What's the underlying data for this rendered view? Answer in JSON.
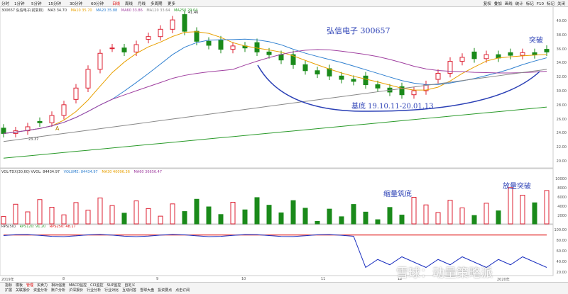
{
  "toolbar": {
    "periods": [
      "分时",
      "1分钟",
      "5分钟",
      "15分钟",
      "30分钟",
      "60分钟",
      "日线",
      "周线",
      "月线",
      "多周期",
      "更多"
    ],
    "active_period": "日线",
    "right_tools": [
      "复权",
      "叠加",
      "画线",
      "统计",
      "标记",
      "F10",
      "标记",
      "关闭"
    ]
  },
  "main_info": {
    "stock": "300657 弘信电子(前复权)",
    "ma3": "MA3 34.70",
    "ma10": "MA10 35.70",
    "ma20": "MA20 35.88",
    "ma60": "MA60 33.86",
    "ma120": "MA120 33.64",
    "ma250": "MA250 29.04"
  },
  "volume_info": {
    "label": "VOL-TDX(30,60) VVOL: 84434.97",
    "volume": "VOLUME: 84434.97",
    "ma30": "MA30 40096.36",
    "ma60": "MA60 36656.47"
  },
  "rps_info": {
    "label": "RPS(50)",
    "rps120": "RPS120: 91.20",
    "rps250": "RPS250: 48.17"
  },
  "annotations": {
    "stock_title": "弘信电子 300657",
    "breakout": "突破",
    "base": "基底 19.10.11-20.01.13",
    "shrink_volume": "缩量筑底",
    "volume_breakout": "放量突破",
    "high_marker": "41.46",
    "low_marker": "23.37",
    "marker_a": "A"
  },
  "axes": {
    "price_levels": [
      "40.00",
      "38.00",
      "36.00",
      "34.00",
      "32.00",
      "30.00",
      "28.00",
      "26.00",
      "24.00",
      "22.00",
      "20.00"
    ],
    "volume_levels": [
      "10000",
      "8000",
      "6000",
      "4000",
      "2000"
    ],
    "rps_levels": [
      "100.00",
      "80.00",
      "60.00",
      "40.00",
      "20.00"
    ],
    "dates": [
      "2019年",
      "8",
      "9",
      "10",
      "11",
      "12",
      "2020年"
    ]
  },
  "bottom_tabs": [
    "指标",
    "模板",
    "管理",
    "买卖力",
    "相对强度",
    "MACD监控",
    "CCI监控",
    "SUP监控",
    "自定义"
  ],
  "bottom_active_tab": "管理",
  "bottom_links": [
    "扩展",
    "关联报价",
    "资金分析",
    "账户分析",
    "沪深报价",
    "行业分析",
    "行业对比",
    "互动问答",
    "雪球大盘",
    "投资要点",
    "点击订阅"
  ],
  "watermark": "雪球：动量策略派",
  "chart_data": {
    "type": "candlestick",
    "price_range": [
      20,
      41
    ],
    "closes": [
      24.2,
      24.6,
      25.2,
      25.8,
      26.9,
      28.5,
      31.0,
      33.8,
      36.2,
      37.0,
      36.4,
      37.5,
      38.7,
      39.8,
      41.2,
      39.5,
      38.0,
      37.4,
      36.8,
      37.3,
      37.0,
      36.4,
      36.0,
      35.2,
      34.5,
      33.6,
      33.1,
      32.8,
      32.3,
      32.0,
      31.5,
      31.0,
      30.4,
      30.0,
      30.6,
      31.5,
      33.2,
      35.0,
      35.6,
      35.4,
      36.0,
      35.5,
      35.9,
      36.3,
      36.0,
      36.4
    ],
    "volume_range": [
      0,
      10000
    ],
    "rps_range": [
      20,
      100
    ]
  }
}
